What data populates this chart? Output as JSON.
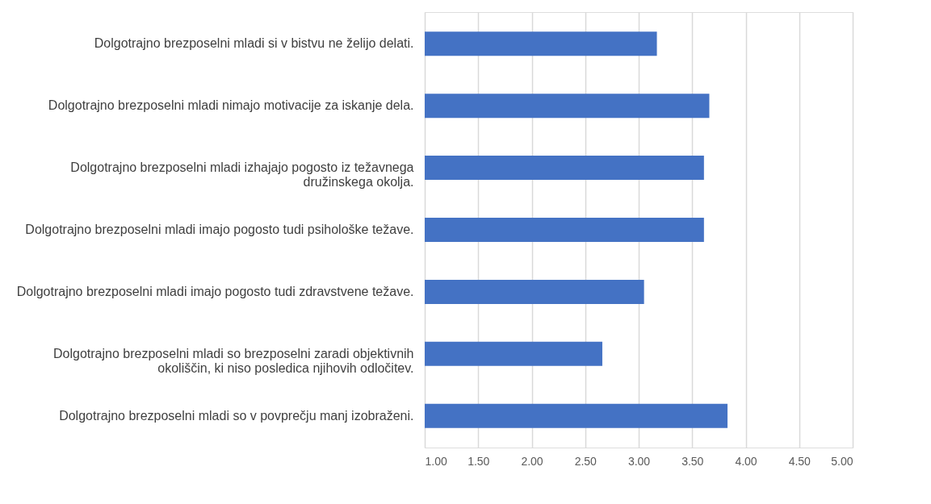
{
  "chart_data": {
    "type": "bar",
    "orientation": "horizontal",
    "categories": [
      "Dolgotrajno brezposelni mladi si v bistvu ne želijo delati.",
      "Dolgotrajno brezposelni mladi nimajo motivacije za iskanje dela.",
      "Dolgotrajno brezposelni mladi izhajajo pogosto iz težavnega družinskega okolja.",
      "Dolgotrajno brezposelni mladi imajo pogosto tudi psihološke težave.",
      "Dolgotrajno brezposelni mladi imajo pogosto tudi zdravstvene težave.",
      "Dolgotrajno brezposelni mladi so brezposelni zaradi objektivnih okoliščin, ki niso posledica njihovih odločitev.",
      "Dolgotrajno brezposelni mladi so v povprečju manj izobraženi."
    ],
    "values": [
      3.17,
      3.66,
      3.61,
      3.61,
      3.05,
      2.66,
      3.83
    ],
    "color": "#4472c4",
    "xlim": [
      1,
      5
    ],
    "xticks": [
      {
        "value": 1,
        "label": "1.00"
      },
      {
        "value": 1.5,
        "label": "1.50"
      },
      {
        "value": 2,
        "label": "2.00"
      },
      {
        "value": 2.5,
        "label": "2.50"
      },
      {
        "value": 3,
        "label": "3.00"
      },
      {
        "value": 3.5,
        "label": "3.50"
      },
      {
        "value": 4,
        "label": "4.00"
      },
      {
        "value": 4.5,
        "label": "4.50"
      },
      {
        "value": 5,
        "label": "5.00"
      }
    ],
    "grid": "x"
  }
}
